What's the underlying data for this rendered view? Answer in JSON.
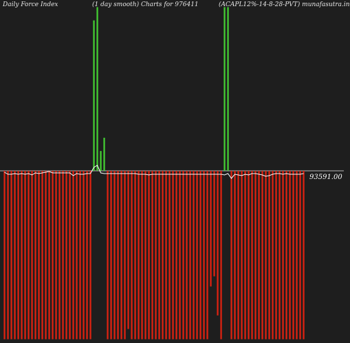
{
  "chart_data": {
    "type": "bar",
    "title_left": "Daily Force  Index",
    "title_middle": "(1 day smooth) Charts for 976411",
    "title_right": "(ACAPL12%-14-8-28-PVT) munafasutra.in",
    "baseline_label": "93591.00",
    "baseline_value": 0,
    "colors": {
      "positive": "#44cc33",
      "negative": "#dd2211",
      "line": "#ffffff",
      "baseline": "#bbbbbb",
      "background": "#1e1e1e"
    },
    "ylim": [
      -1.0,
      1.0
    ],
    "values": [
      -0.99,
      -0.99,
      -0.99,
      -0.99,
      -0.99,
      -0.99,
      -0.99,
      -0.99,
      -0.99,
      -0.99,
      -0.99,
      -0.99,
      -0.99,
      -0.99,
      -0.99,
      -0.99,
      -0.99,
      -0.99,
      -0.99,
      -0.99,
      -0.99,
      -0.99,
      -0.99,
      -0.99,
      -0.99,
      -0.99,
      0.91,
      0.99,
      0.12,
      0.2,
      -0.99,
      -0.99,
      -0.99,
      -0.99,
      -0.99,
      -0.99,
      -0.93,
      -0.99,
      -0.99,
      -0.99,
      -0.99,
      -0.99,
      -0.99,
      -0.99,
      -0.99,
      -0.99,
      -0.99,
      -0.99,
      -0.99,
      -0.99,
      -0.99,
      -0.99,
      -0.99,
      -0.99,
      -0.99,
      -0.99,
      -0.99,
      -0.99,
      -0.99,
      -0.99,
      -0.68,
      -0.62,
      -0.85,
      -0.99,
      0.99,
      0.99,
      -0.99,
      -0.99,
      -0.99,
      -0.99,
      -0.99,
      -0.99,
      -0.99,
      -0.99,
      -0.99,
      -0.99,
      -0.99,
      -0.99,
      -0.99,
      -0.99,
      -0.99,
      -0.99,
      -0.99,
      -0.99,
      -0.99,
      -0.99,
      -0.99,
      -0.99
    ],
    "line": [
      -0.02,
      -0.05,
      -0.05,
      -0.04,
      -0.05,
      -0.04,
      -0.05,
      -0.04,
      -0.06,
      -0.03,
      -0.04,
      -0.03,
      -0.02,
      -0.01,
      -0.03,
      -0.03,
      -0.03,
      -0.03,
      -0.03,
      -0.03,
      -0.07,
      -0.04,
      -0.05,
      -0.05,
      -0.04,
      -0.04,
      0.05,
      0.08,
      -0.03,
      -0.04,
      -0.04,
      -0.04,
      -0.04,
      -0.04,
      -0.04,
      -0.04,
      -0.04,
      -0.04,
      -0.04,
      -0.05,
      -0.05,
      -0.05,
      -0.06,
      -0.05,
      -0.05,
      -0.05,
      -0.05,
      -0.05,
      -0.05,
      -0.05,
      -0.05,
      -0.05,
      -0.05,
      -0.05,
      -0.05,
      -0.05,
      -0.05,
      -0.05,
      -0.05,
      -0.05,
      -0.05,
      -0.05,
      -0.05,
      -0.05,
      -0.06,
      -0.04,
      -0.11,
      -0.05,
      -0.06,
      -0.07,
      -0.05,
      -0.06,
      -0.04,
      -0.04,
      -0.05,
      -0.06,
      -0.08,
      -0.07,
      -0.05,
      -0.04,
      -0.04,
      -0.05,
      -0.04,
      -0.05,
      -0.05,
      -0.05,
      -0.05,
      -0.04
    ]
  }
}
